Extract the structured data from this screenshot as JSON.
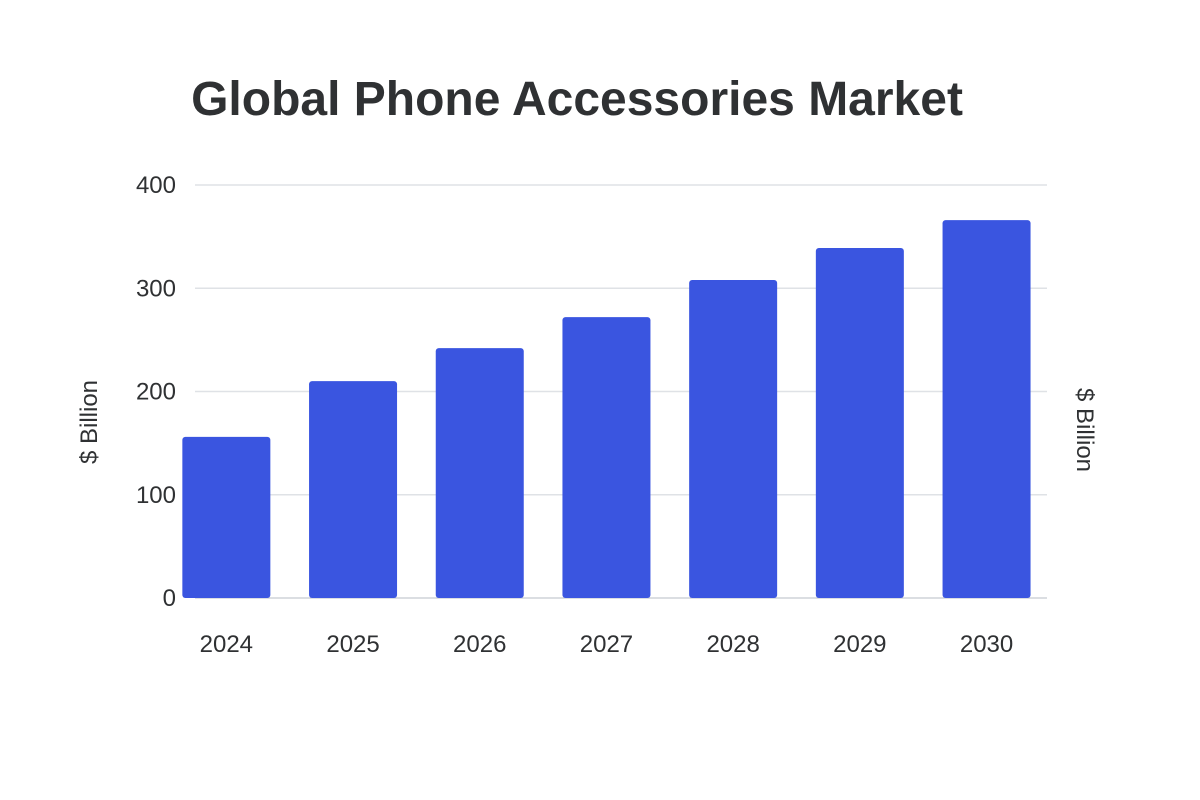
{
  "chart_data": {
    "type": "bar",
    "title": "Global Phone Accessories Market",
    "categories": [
      "2024",
      "2025",
      "2026",
      "2027",
      "2028",
      "2029",
      "2030"
    ],
    "series": [
      {
        "values": [
          156,
          210,
          242,
          272,
          308,
          339,
          366
        ]
      }
    ],
    "ylabel": "$ Billion",
    "ylabel_right": "$ Billion",
    "ylim": [
      0,
      400
    ],
    "yticks": [
      0,
      100,
      200,
      300,
      400
    ],
    "grid": true,
    "colors": {
      "bar": "#3a55e0",
      "grid": "#dfe2e6",
      "text": "#2f3133"
    }
  }
}
